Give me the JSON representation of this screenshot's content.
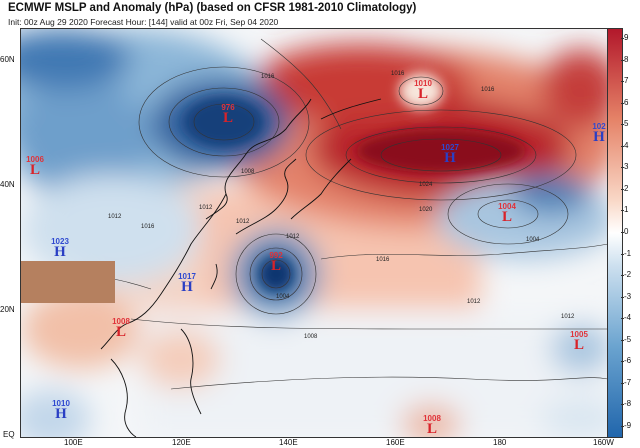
{
  "header": {
    "title": "ECMWF MSLP and Anomaly (hPa) (based on CFSR 1981-2010 Climatology)",
    "subtitle": "Init: 00z Aug 29 2020   Forecast Hour: [144]   valid at 00z Fri, Sep 04 2020"
  },
  "axes": {
    "lat_labels": [
      "60N",
      "40N",
      "20N",
      "EQ"
    ],
    "lon_labels": [
      "100E",
      "120E",
      "140E",
      "160E",
      "180",
      "160W"
    ]
  },
  "colorbar": {
    "labels": [
      "9",
      "8",
      "7",
      "6",
      "5",
      "4",
      "3",
      "2",
      "1",
      "0",
      "-1",
      "-2",
      "-3",
      "-4",
      "-5",
      "-6",
      "-7",
      "-8",
      "-9"
    ],
    "positive_color": "#b2182b",
    "negative_color": "#2166ac"
  },
  "pressure_centers": [
    {
      "type": "L",
      "value": "976"
    },
    {
      "type": "L",
      "value": "1010"
    },
    {
      "type": "H",
      "value": "1027"
    },
    {
      "type": "H",
      "value": "102"
    },
    {
      "type": "L",
      "value": "1006"
    },
    {
      "type": "H",
      "value": "1023"
    },
    {
      "type": "L",
      "value": "992"
    },
    {
      "type": "H",
      "value": "1017"
    },
    {
      "type": "L",
      "value": "1004"
    },
    {
      "type": "L",
      "value": "1008"
    },
    {
      "type": "L",
      "value": "1005"
    },
    {
      "type": "H",
      "value": "1010"
    },
    {
      "type": "L",
      "value": "1008"
    }
  ],
  "isobar_labels": [
    "1016",
    "1016",
    "1024",
    "1020",
    "1016",
    "1012",
    "1008",
    "1004",
    "1012",
    "1016",
    "1012",
    "1008",
    "1012",
    "1016",
    "1012",
    "1004",
    "1012"
  ]
}
